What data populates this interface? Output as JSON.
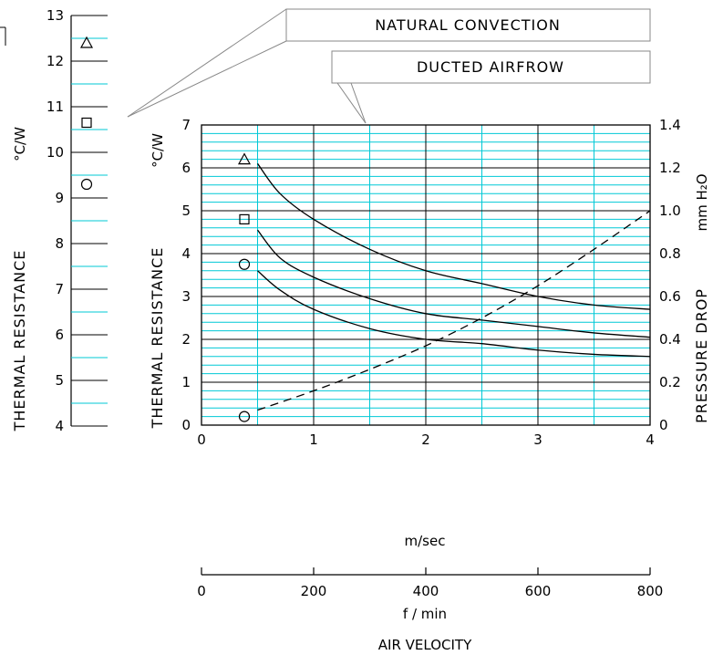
{
  "chart_data": [
    {
      "type": "scatter",
      "panel": "natural-convection",
      "y_axis": {
        "label": "THERMAL RESISTANCE",
        "unit": "°C/W",
        "range": [
          4,
          13
        ],
        "ticks": [
          "4",
          "5",
          "6",
          "7",
          "8",
          "9",
          "10",
          "11",
          "12",
          "13"
        ]
      },
      "callout": "NATURAL CONVECTION",
      "markers": [
        {
          "shape": "triangle",
          "value": 12.4
        },
        {
          "shape": "square",
          "value": 10.65
        },
        {
          "shape": "circle",
          "value": 9.3
        }
      ]
    },
    {
      "type": "line",
      "panel": "ducted-airflow",
      "callout": "DUCTED AIRFROW",
      "grid": true,
      "x_axis": {
        "label": "m/sec",
        "range": [
          0,
          4
        ],
        "ticks": [
          "0",
          "1",
          "2",
          "3",
          "4"
        ]
      },
      "x_axis_secondary": {
        "label": "f / min",
        "range": [
          0,
          800
        ],
        "ticks": [
          "0",
          "200",
          "400",
          "600",
          "800"
        ]
      },
      "x_title": "AIR VELOCITY",
      "y_axis_left": {
        "label": "THERMAL RESISTANCE",
        "unit": "°C/W",
        "range": [
          0,
          7
        ],
        "ticks": [
          "0",
          "1",
          "2",
          "3",
          "4",
          "5",
          "6",
          "7"
        ]
      },
      "y_axis_right": {
        "label": "PRESSURE DROP",
        "unit": "mm H₂O",
        "range": [
          0,
          1.4
        ],
        "ticks": [
          "0",
          "0.2",
          "0.4",
          "0.6",
          "0.8",
          "1.0",
          "1.2",
          "1.4"
        ]
      },
      "series": [
        {
          "marker": "triangle",
          "style": "solid",
          "axis": "left",
          "x": [
            0.5,
            0.7,
            1.0,
            1.5,
            2.0,
            2.5,
            3.0,
            3.5,
            4.0
          ],
          "y": [
            6.1,
            5.4,
            4.8,
            4.1,
            3.6,
            3.3,
            3.0,
            2.8,
            2.7
          ]
        },
        {
          "marker": "square",
          "style": "solid",
          "axis": "left",
          "x": [
            0.5,
            0.7,
            1.0,
            1.5,
            2.0,
            2.5,
            3.0,
            3.5,
            4.0
          ],
          "y": [
            4.55,
            3.9,
            3.45,
            2.95,
            2.6,
            2.45,
            2.3,
            2.15,
            2.05
          ]
        },
        {
          "marker": "circle",
          "style": "solid",
          "axis": "left",
          "x": [
            0.5,
            0.7,
            1.0,
            1.5,
            2.0,
            2.5,
            3.0,
            3.5,
            4.0
          ],
          "y": [
            3.6,
            3.15,
            2.7,
            2.25,
            2.0,
            1.9,
            1.75,
            1.65,
            1.6
          ]
        },
        {
          "marker": "circle",
          "style": "dashed",
          "axis": "right",
          "x": [
            0.5,
            1.0,
            1.5,
            2.0,
            2.5,
            3.0,
            3.5,
            4.0
          ],
          "y": [
            0.07,
            0.16,
            0.26,
            0.37,
            0.5,
            0.65,
            0.82,
            1.0
          ]
        }
      ],
      "start_markers": [
        {
          "shape": "triangle",
          "value": 6.2,
          "axis": "left"
        },
        {
          "shape": "square",
          "value": 4.8,
          "axis": "left"
        },
        {
          "shape": "circle",
          "value": 3.75,
          "axis": "left"
        },
        {
          "shape": "circle",
          "value": 0.04,
          "axis": "right"
        }
      ]
    }
  ],
  "colors": {
    "grid_major": "#000000",
    "grid_minor": "#00c8d6",
    "line": "#000000"
  }
}
